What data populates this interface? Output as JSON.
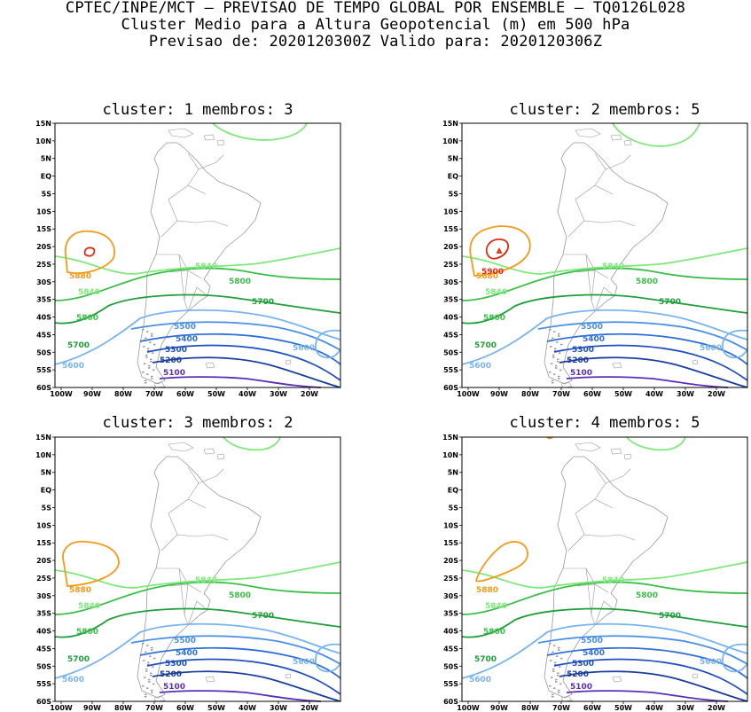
{
  "header": {
    "line1": "CPTEC/INPE/MCT – PREVISAO DE TEMPO GLOBAL POR ENSEMBLE – TQ0126L028",
    "line2": "Cluster Medio para a Altura Geopotencial (m) em 500 hPa",
    "line3": "Previsao de: 2020120300Z   Valido para: 2020120306Z"
  },
  "axes": {
    "lat_labels": [
      "15N",
      "10N",
      "5N",
      "EQ",
      "5S",
      "10S",
      "15S",
      "20S",
      "25S",
      "30S",
      "35S",
      "40S",
      "45S",
      "50S",
      "55S",
      "60S"
    ],
    "lon_labels": [
      "100W",
      "90W",
      "80W",
      "70W",
      "60W",
      "50W",
      "40W",
      "30W",
      "20W"
    ]
  },
  "colors": {
    "c5100": "#5b2fb5",
    "c5200": "#1a3d9e",
    "c5300": "#2050c0",
    "c5400": "#2f6fd8",
    "c5500": "#4a8fe6",
    "c5600": "#78b4f0",
    "c5700": "#1f9e3a",
    "c5800": "#3cbf4a",
    "c5840": "#7ee87a",
    "c5880": "#f59a18",
    "c5900": "#e02a10",
    "land": "#999999"
  },
  "panels": [
    {
      "title": "cluster: 1  membros: 3",
      "labels": {
        "c5100": "5100",
        "c5200": "5200",
        "c5300": "5300",
        "c5400": "5400",
        "c5500": "5500",
        "c5600a": "5600",
        "c5600b": "5600",
        "c5700a": "5700",
        "c5700b": "5700",
        "c5800a": "5800",
        "c5800b": "5800",
        "c5840a": "5840",
        "c5840b": "5840",
        "c5880": "5880"
      }
    },
    {
      "title": "cluster: 2  membros: 5",
      "labels": {
        "c5100": "5100",
        "c5200": "5200",
        "c5300": "5300",
        "c5400": "5400",
        "c5500": "5500",
        "c5600a": "5600",
        "c5600b": "5600",
        "c5700a": "5700",
        "c5700b": "5700",
        "c5800a": "5800",
        "c5800b": "5800",
        "c5840a": "5840",
        "c5840b": "5840",
        "c5880": "5880",
        "c5900": "5900"
      }
    },
    {
      "title": "cluster: 3  membros: 2",
      "labels": {
        "c5100": "5100",
        "c5200": "5200",
        "c5300": "5300",
        "c5400": "5400",
        "c5500": "5500",
        "c5600a": "5600",
        "c5600b": "5600",
        "c5700a": "5700",
        "c5700b": "5700",
        "c5800a": "5800",
        "c5800b": "5800",
        "c5840a": "5840",
        "c5840b": "5840",
        "c5880": "5880"
      }
    },
    {
      "title": "cluster: 4  membros: 5",
      "labels": {
        "c5100": "5100",
        "c5200": "5200",
        "c5300": "5300",
        "c5400": "5400",
        "c5500": "5500",
        "c5600a": "5600",
        "c5600b": "5600",
        "c5700a": "5700",
        "c5700b": "5700",
        "c5800a": "5800",
        "c5800b": "5800",
        "c5840a": "5840",
        "c5840b": "5840",
        "c5880": "5880"
      }
    }
  ]
}
